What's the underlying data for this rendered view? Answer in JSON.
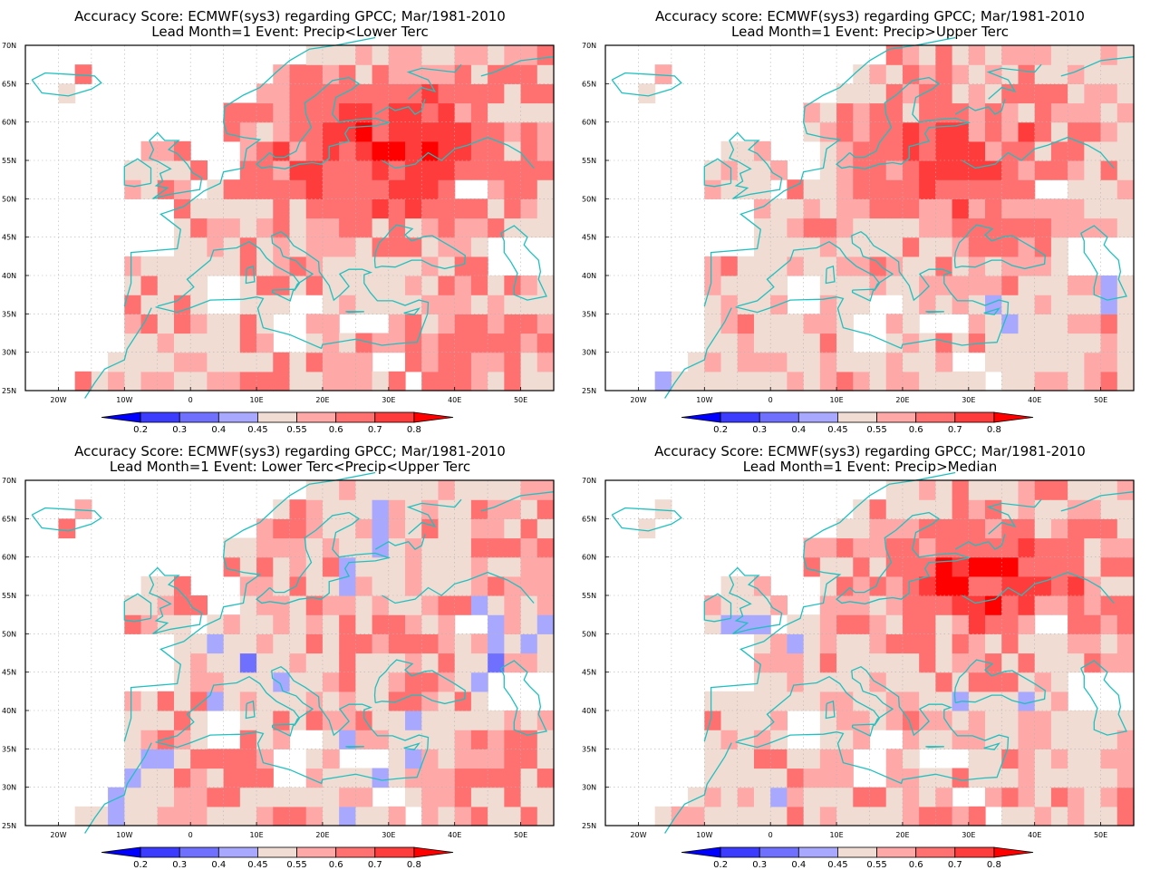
{
  "panels": [
    {
      "title_line1": "Accuracy Score: ECMWF(sys3) regarding GPCC; Mar/1981-2010",
      "title_line2": "Lead Month=1 Event: Precip<Lower Terc",
      "pattern": "lower"
    },
    {
      "title_line1": "Accuracy score: ECMWF(sys3) regarding GPCC; Mar/1981-2010",
      "title_line2": "Lead Month=1 Event: Precip>Upper Terc",
      "pattern": "upper"
    },
    {
      "title_line1": "Accuracy Score: ECMWF(sys3) regarding GPCC; Mar/1981-2010",
      "title_line2": "Lead Month=1 Event: Lower Terc<Precip<Upper Terc",
      "pattern": "middle"
    },
    {
      "title_line1": "Accuracy Score: ECMWF(sys3) regarding GPCC; Mar/1981-2010",
      "title_line2": "Lead Month=1 Event: Precip>Median",
      "pattern": "median"
    }
  ],
  "map": {
    "lat_labels": [
      "70N",
      "65N",
      "60N",
      "55N",
      "50N",
      "45N",
      "40N",
      "35N",
      "30N",
      "25N"
    ],
    "lon_labels": [
      "20W",
      "10W",
      "0",
      "10E",
      "20E",
      "30E",
      "40E",
      "50E"
    ],
    "coast_color": "#20c0c0",
    "grid": "dotted"
  },
  "colorbar": {
    "labels": [
      "0.2",
      "0.3",
      "0.4",
      "0.45",
      "0.55",
      "0.6",
      "0.7",
      "0.8"
    ],
    "colors": [
      "#0000ff",
      "#3c3cff",
      "#7070ff",
      "#a8a8ff",
      "#f0dcd2",
      "#ffa8a8",
      "#ff7070",
      "#ff3c3c",
      "#ff0000"
    ]
  }
}
